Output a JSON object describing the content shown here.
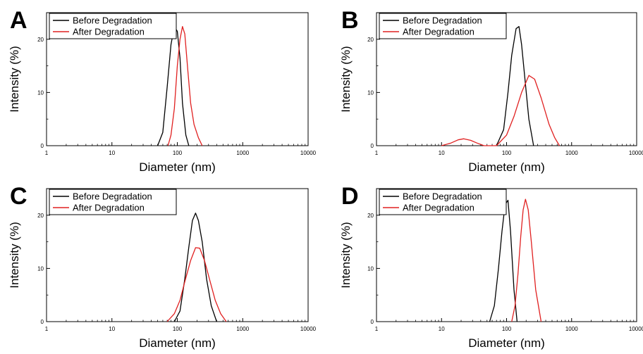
{
  "figure": {
    "panels": [
      "A",
      "B",
      "C",
      "D"
    ]
  },
  "chart_data": [
    {
      "panel_label": "A",
      "type": "line",
      "xscale": "log",
      "xlim": [
        1,
        10000
      ],
      "ylim": [
        0,
        25
      ],
      "xticks": [
        "1",
        "10",
        "100",
        "1000",
        "10000"
      ],
      "yticks": [
        "0",
        "10",
        "20"
      ],
      "xlabel": "Diameter (nm)",
      "ylabel": "Intensity (%)",
      "legend": "top-left",
      "series": [
        {
          "name": "Before Degradation",
          "color": "#000000",
          "x": [
            50,
            60,
            70,
            80,
            90,
            100,
            110,
            120,
            135,
            150
          ],
          "y": [
            0,
            2.5,
            11,
            19,
            22.4,
            21.5,
            16.5,
            8,
            2,
            0
          ]
        },
        {
          "name": "After Degradation",
          "color": "#e02020",
          "x": [
            72,
            80,
            90,
            100,
            110,
            120,
            130,
            145,
            160,
            180,
            210,
            240
          ],
          "y": [
            0,
            2,
            7,
            15,
            20,
            22.4,
            21,
            14,
            8,
            4,
            1.5,
            0
          ]
        }
      ]
    },
    {
      "panel_label": "B",
      "type": "line",
      "xscale": "log",
      "xlim": [
        1,
        10000
      ],
      "ylim": [
        0,
        25
      ],
      "xticks": [
        "1",
        "10",
        "100",
        "1000",
        "10000"
      ],
      "yticks": [
        "0",
        "10",
        "20"
      ],
      "xlabel": "Diameter (nm)",
      "ylabel": "Intensity (%)",
      "legend": "top-left",
      "series": [
        {
          "name": "Before Degradation",
          "color": "#000000",
          "x": [
            70,
            90,
            105,
            120,
            140,
            155,
            170,
            190,
            220,
            260
          ],
          "y": [
            0,
            3,
            10,
            17,
            22,
            22.4,
            19,
            13,
            5,
            0
          ]
        },
        {
          "name": "After Degradation",
          "color": "#e02020",
          "x": [
            10,
            14,
            18,
            22,
            28,
            35,
            45,
            70,
            100,
            130,
            170,
            220,
            270,
            340,
            450,
            550,
            650
          ],
          "y": [
            0,
            0.5,
            1.1,
            1.3,
            1.0,
            0.5,
            0,
            0,
            2,
            5.5,
            10,
            13.2,
            12.5,
            9,
            4,
            1.5,
            0
          ]
        }
      ]
    },
    {
      "panel_label": "C",
      "type": "line",
      "xscale": "log",
      "xlim": [
        1,
        10000
      ],
      "ylim": [
        0,
        25
      ],
      "xticks": [
        "1",
        "10",
        "100",
        "1000",
        "10000"
      ],
      "yticks": [
        "0",
        "10",
        "20"
      ],
      "xlabel": "Diameter (nm)",
      "ylabel": "Intensity (%)",
      "legend": "top-left",
      "series": [
        {
          "name": "Before Degradation",
          "color": "#000000",
          "x": [
            90,
            110,
            130,
            150,
            170,
            190,
            210,
            240,
            280,
            330,
            400
          ],
          "y": [
            0,
            2,
            8,
            14,
            19,
            20.4,
            19,
            15,
            8,
            3,
            0
          ]
        },
        {
          "name": "After Degradation",
          "color": "#e02020",
          "x": [
            70,
            90,
            110,
            130,
            160,
            190,
            220,
            260,
            310,
            380,
            460,
            560
          ],
          "y": [
            0,
            1.5,
            4,
            7.5,
            11.5,
            13.9,
            13.8,
            11.5,
            8,
            4,
            1.5,
            0
          ]
        }
      ]
    },
    {
      "panel_label": "D",
      "type": "line",
      "xscale": "log",
      "xlim": [
        1,
        10000
      ],
      "ylim": [
        0,
        25
      ],
      "xticks": [
        "1",
        "10",
        "100",
        "1000",
        "10000"
      ],
      "yticks": [
        "0",
        "10",
        "20"
      ],
      "xlabel": "Diameter (nm)",
      "ylabel": "Intensity (%)",
      "legend": "top-left",
      "series": [
        {
          "name": "Before Degradation",
          "color": "#000000",
          "x": [
            55,
            65,
            75,
            85,
            95,
            105,
            115,
            130,
            145
          ],
          "y": [
            0,
            3,
            10,
            17,
            22,
            22.8,
            17,
            6,
            0
          ]
        },
        {
          "name": "After Degradation",
          "color": "#e02020",
          "x": [
            120,
            135,
            150,
            165,
            180,
            195,
            215,
            240,
            280,
            340
          ],
          "y": [
            0,
            3,
            9,
            16,
            21,
            23,
            21,
            15,
            6,
            0
          ]
        }
      ]
    }
  ]
}
